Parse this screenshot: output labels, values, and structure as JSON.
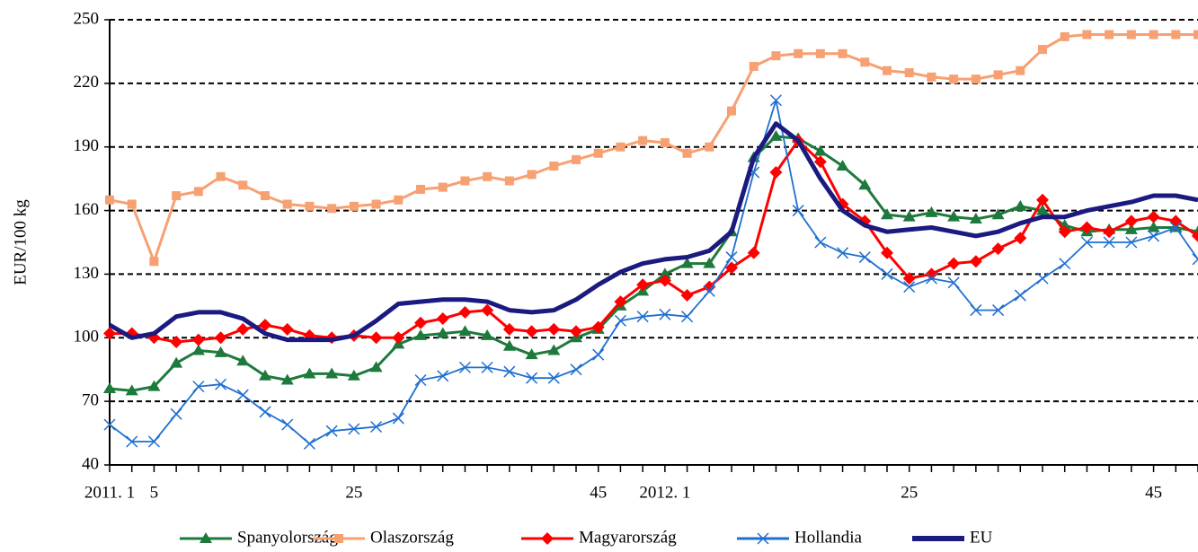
{
  "chart_data": {
    "type": "line",
    "y_label": "EUR/100 kg",
    "categories": [
      "2011. 1",
      null,
      "5",
      null,
      null,
      null,
      null,
      null,
      null,
      null,
      null,
      "25",
      null,
      null,
      null,
      null,
      null,
      null,
      null,
      null,
      null,
      null,
      "45",
      null,
      null,
      "2012. 1",
      null,
      null,
      null,
      null,
      null,
      null,
      null,
      null,
      null,
      null,
      "25",
      null,
      null,
      null,
      null,
      null,
      null,
      null,
      null,
      null,
      null,
      "45",
      null,
      null
    ],
    "ylim": [
      40,
      250
    ],
    "yticks": [
      40,
      70,
      100,
      130,
      160,
      190,
      220,
      250
    ],
    "grid": true,
    "legend": "bottom",
    "series": [
      {
        "name": "Spanyolország",
        "color": "#1e7a3c",
        "marker": "triangle",
        "values": [
          76,
          75,
          77,
          88,
          94,
          93,
          89,
          82,
          80,
          83,
          83,
          82,
          86,
          97,
          101,
          102,
          103,
          101,
          96,
          92,
          94,
          100,
          104,
          115,
          122,
          130,
          135,
          135,
          150,
          185,
          195,
          194,
          188,
          181,
          172,
          158,
          157,
          159,
          157,
          156,
          158,
          162,
          160,
          153,
          150,
          151,
          151,
          152,
          152,
          150
        ]
      },
      {
        "name": "Olaszország",
        "color": "#f7a072",
        "marker": "square",
        "values": [
          165,
          163,
          136,
          167,
          169,
          176,
          172,
          167,
          163,
          162,
          161,
          162,
          163,
          165,
          170,
          171,
          174,
          176,
          174,
          177,
          181,
          184,
          187,
          190,
          193,
          192,
          187,
          190,
          207,
          228,
          233,
          234,
          234,
          234,
          230,
          226,
          225,
          223,
          222,
          222,
          224,
          226,
          236,
          242,
          243,
          243,
          243,
          243,
          243,
          243
        ]
      },
      {
        "name": "Magyarország",
        "color": "#ff0000",
        "marker": "diamond",
        "values": [
          102,
          102,
          100,
          98,
          99,
          100,
          104,
          106,
          104,
          101,
          100,
          101,
          100,
          100,
          107,
          109,
          112,
          113,
          104,
          103,
          104,
          103,
          105,
          117,
          125,
          127,
          120,
          124,
          133,
          140,
          178,
          193,
          183,
          163,
          155,
          140,
          128,
          130,
          135,
          136,
          142,
          147,
          165,
          150,
          152,
          150,
          155,
          157,
          155,
          148
        ]
      },
      {
        "name": "Hollandia",
        "color": "#1f6fd0",
        "marker": "x",
        "values": [
          59,
          51,
          51,
          64,
          77,
          78,
          73,
          65,
          59,
          50,
          56,
          57,
          58,
          62,
          80,
          82,
          86,
          86,
          84,
          81,
          81,
          85,
          92,
          108,
          110,
          111,
          110,
          122,
          138,
          178,
          212,
          160,
          145,
          140,
          138,
          130,
          124,
          128,
          126,
          113,
          113,
          120,
          128,
          135,
          145,
          145,
          145,
          148,
          152,
          137
        ]
      },
      {
        "name": "EU",
        "color": "#1a1a80",
        "marker": "none",
        "values": [
          106,
          100,
          102,
          110,
          112,
          112,
          109,
          102,
          99,
          99,
          99,
          101,
          108,
          116,
          117,
          118,
          118,
          117,
          113,
          112,
          113,
          118,
          125,
          131,
          135,
          137,
          138,
          141,
          150,
          185,
          201,
          193,
          175,
          160,
          153,
          150,
          151,
          152,
          150,
          148,
          150,
          154,
          157,
          157,
          160,
          162,
          164,
          167,
          167,
          165
        ]
      }
    ]
  }
}
